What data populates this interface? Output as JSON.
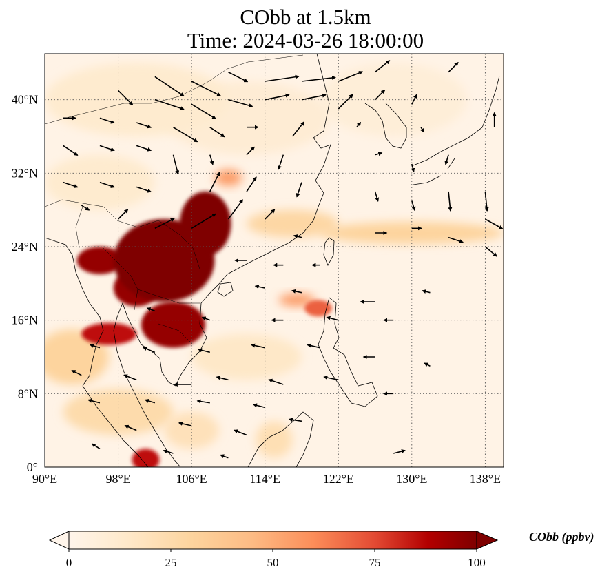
{
  "title": {
    "line1": "CObb at 1.5km",
    "line2": "Time: 2024-03-26 18:00:00"
  },
  "map": {
    "lon_range": [
      90,
      140
    ],
    "lat_range": [
      0,
      45
    ],
    "lon_ticks": [
      {
        "value": 90,
        "label": "90°E"
      },
      {
        "value": 98,
        "label": "98°E"
      },
      {
        "value": 106,
        "label": "106°E"
      },
      {
        "value": 114,
        "label": "114°E"
      },
      {
        "value": 122,
        "label": "122°E"
      },
      {
        "value": 130,
        "label": "130°E"
      },
      {
        "value": 138,
        "label": "138°E"
      }
    ],
    "lat_ticks": [
      {
        "value": 0,
        "label": "0°"
      },
      {
        "value": 8,
        "label": "8°N"
      },
      {
        "value": 16,
        "label": "16°N"
      },
      {
        "value": 24,
        "label": "24°N"
      },
      {
        "value": 32,
        "label": "32°N"
      },
      {
        "value": 40,
        "label": "40°N"
      }
    ],
    "gridlines": true,
    "colors": {
      "low": "#fff5eb",
      "mid": "#fdbf85",
      "high": "#7f0000",
      "coast": "#000000",
      "wind": "#000000"
    },
    "plumes": [
      {
        "lon": 103,
        "lat": 22.5,
        "rx": 5.5,
        "ry": 4.5,
        "level": 100
      },
      {
        "lon": 107.5,
        "lat": 26.5,
        "rx": 2.8,
        "ry": 3.5,
        "level": 100
      },
      {
        "lon": 104,
        "lat": 15.5,
        "rx": 3.5,
        "ry": 2.5,
        "level": 95
      },
      {
        "lon": 96,
        "lat": 22.5,
        "rx": 2.5,
        "ry": 1.5,
        "level": 95
      },
      {
        "lon": 100,
        "lat": 19.5,
        "rx": 2.5,
        "ry": 2,
        "level": 95
      },
      {
        "lon": 97,
        "lat": 14.5,
        "rx": 3,
        "ry": 1.2,
        "level": 85
      },
      {
        "lon": 101,
        "lat": 0.8,
        "rx": 1.5,
        "ry": 1.2,
        "level": 85
      },
      {
        "lon": 119.8,
        "lat": 17.3,
        "rx": 1.5,
        "ry": 0.9,
        "level": 70
      },
      {
        "lon": 117.5,
        "lat": 18.2,
        "rx": 2,
        "ry": 0.7,
        "level": 55
      },
      {
        "lon": 110,
        "lat": 31.5,
        "rx": 1.5,
        "ry": 0.9,
        "level": 55
      },
      {
        "lon": 130,
        "lat": 25.5,
        "rx": 10,
        "ry": 1.2,
        "level": 30
      },
      {
        "lon": 117,
        "lat": 26.5,
        "rx": 5,
        "ry": 1.5,
        "level": 28
      },
      {
        "lon": 93,
        "lat": 12,
        "rx": 4,
        "ry": 3,
        "level": 30
      },
      {
        "lon": 98,
        "lat": 6,
        "rx": 6,
        "ry": 2.5,
        "level": 25
      },
      {
        "lon": 106,
        "lat": 4,
        "rx": 3,
        "ry": 2,
        "level": 20
      },
      {
        "lon": 115,
        "lat": 3,
        "rx": 2,
        "ry": 2,
        "level": 22
      },
      {
        "lon": 112,
        "lat": 12,
        "rx": 6,
        "ry": 2.5,
        "level": 15
      },
      {
        "lon": 100,
        "lat": 40,
        "rx": 10,
        "ry": 4,
        "level": 12
      },
      {
        "lon": 112,
        "lat": 38,
        "rx": 9,
        "ry": 4,
        "level": 10
      },
      {
        "lon": 128,
        "lat": 40,
        "rx": 8,
        "ry": 4,
        "level": 8
      },
      {
        "lon": 96,
        "lat": 31,
        "rx": 6,
        "ry": 3,
        "level": 12
      }
    ],
    "wind_vectors": [
      {
        "lon": 102,
        "lat": 42.5,
        "u": 3,
        "v": -2
      },
      {
        "lon": 106,
        "lat": 42,
        "u": 3,
        "v": -1.5
      },
      {
        "lon": 110,
        "lat": 43,
        "u": 2,
        "v": -1
      },
      {
        "lon": 114,
        "lat": 42,
        "u": 3.5,
        "v": 0.5
      },
      {
        "lon": 118,
        "lat": 42,
        "u": 3.5,
        "v": 0.4
      },
      {
        "lon": 122,
        "lat": 42,
        "u": 2.5,
        "v": 1
      },
      {
        "lon": 126,
        "lat": 43,
        "u": 1.5,
        "v": 1.2
      },
      {
        "lon": 134,
        "lat": 43,
        "u": 1,
        "v": 1
      },
      {
        "lon": 98,
        "lat": 41,
        "u": 1.5,
        "v": -1.5
      },
      {
        "lon": 102,
        "lat": 40,
        "u": 3,
        "v": -1
      },
      {
        "lon": 106,
        "lat": 39.5,
        "u": 2.5,
        "v": -1.5
      },
      {
        "lon": 110,
        "lat": 40,
        "u": 2.5,
        "v": -0.7
      },
      {
        "lon": 114,
        "lat": 40,
        "u": 2.5,
        "v": 0.5
      },
      {
        "lon": 118,
        "lat": 40,
        "u": 2.5,
        "v": 0.5
      },
      {
        "lon": 122,
        "lat": 39,
        "u": 1.5,
        "v": 1.5
      },
      {
        "lon": 126,
        "lat": 40,
        "u": 1,
        "v": 1
      },
      {
        "lon": 130,
        "lat": 39.5,
        "u": 0.5,
        "v": 1
      },
      {
        "lon": 92,
        "lat": 38,
        "u": 1.3,
        "v": 0
      },
      {
        "lon": 96,
        "lat": 38,
        "u": 1.5,
        "v": -0.5
      },
      {
        "lon": 100,
        "lat": 37.5,
        "u": 1.5,
        "v": -0.5
      },
      {
        "lon": 104,
        "lat": 37,
        "u": 2.5,
        "v": -1.5
      },
      {
        "lon": 108,
        "lat": 37,
        "u": 1.5,
        "v": -1
      },
      {
        "lon": 112,
        "lat": 37,
        "u": 1.2,
        "v": 0
      },
      {
        "lon": 117,
        "lat": 36,
        "u": 1.2,
        "v": 1.5
      },
      {
        "lon": 124,
        "lat": 37,
        "u": 0.4,
        "v": 0.5
      },
      {
        "lon": 131,
        "lat": 37,
        "u": 0.3,
        "v": -0.5
      },
      {
        "lon": 139,
        "lat": 37,
        "u": 0,
        "v": 1.5
      },
      {
        "lon": 92,
        "lat": 35,
        "u": 1.5,
        "v": -1
      },
      {
        "lon": 96,
        "lat": 35,
        "u": 1.5,
        "v": -0.5
      },
      {
        "lon": 100,
        "lat": 35,
        "u": 1.5,
        "v": -0.5
      },
      {
        "lon": 104,
        "lat": 34,
        "u": 0.5,
        "v": -2
      },
      {
        "lon": 108,
        "lat": 34,
        "u": 0.3,
        "v": -1
      },
      {
        "lon": 112,
        "lat": 34,
        "u": 0.8,
        "v": 0.8
      },
      {
        "lon": 116,
        "lat": 34,
        "u": -0.5,
        "v": -1.5
      },
      {
        "lon": 126,
        "lat": 34,
        "u": 0.7,
        "v": 0.2
      },
      {
        "lon": 130,
        "lat": 33,
        "u": 0.2,
        "v": -0.8
      },
      {
        "lon": 134,
        "lat": 34,
        "u": -0.3,
        "v": -1
      },
      {
        "lon": 92,
        "lat": 31,
        "u": 1.5,
        "v": -0.5
      },
      {
        "lon": 96,
        "lat": 31,
        "u": 1.5,
        "v": -0.5
      },
      {
        "lon": 100,
        "lat": 30.5,
        "u": 1.5,
        "v": -0.5
      },
      {
        "lon": 108,
        "lat": 30,
        "u": 1,
        "v": 2
      },
      {
        "lon": 112,
        "lat": 30,
        "u": 1,
        "v": 1.5
      },
      {
        "lon": 118,
        "lat": 31,
        "u": -0.5,
        "v": -1.5
      },
      {
        "lon": 126,
        "lat": 30,
        "u": 0.3,
        "v": -1
      },
      {
        "lon": 130,
        "lat": 29,
        "u": 0.3,
        "v": -1
      },
      {
        "lon": 134,
        "lat": 30,
        "u": 0.2,
        "v": -2
      },
      {
        "lon": 138,
        "lat": 30,
        "u": 0.2,
        "v": -2
      },
      {
        "lon": 94,
        "lat": 28.5,
        "u": 0.8,
        "v": -0.5
      },
      {
        "lon": 98,
        "lat": 27,
        "u": 1,
        "v": 1
      },
      {
        "lon": 102,
        "lat": 26,
        "u": 2,
        "v": 1
      },
      {
        "lon": 106,
        "lat": 26,
        "u": 2.5,
        "v": 1.5
      },
      {
        "lon": 110,
        "lat": 27,
        "u": 1.5,
        "v": 2
      },
      {
        "lon": 114,
        "lat": 27,
        "u": 1,
        "v": 1
      },
      {
        "lon": 118,
        "lat": 25,
        "u": -0.8,
        "v": 0.2
      },
      {
        "lon": 126,
        "lat": 25.5,
        "u": 1.2,
        "v": 0
      },
      {
        "lon": 130,
        "lat": 26,
        "u": 1,
        "v": 0
      },
      {
        "lon": 134,
        "lat": 25,
        "u": 1.5,
        "v": -0.5
      },
      {
        "lon": 138,
        "lat": 27,
        "u": 1.8,
        "v": -1
      },
      {
        "lon": 138,
        "lat": 24,
        "u": 1.2,
        "v": -1
      },
      {
        "lon": 112,
        "lat": 22.5,
        "u": -1.2,
        "v": 0
      },
      {
        "lon": 116,
        "lat": 22,
        "u": -1,
        "v": 0
      },
      {
        "lon": 120,
        "lat": 22,
        "u": -0.8,
        "v": 0
      },
      {
        "lon": 114,
        "lat": 19.5,
        "u": -1,
        "v": 0.2
      },
      {
        "lon": 118,
        "lat": 19,
        "u": -1,
        "v": 0.2
      },
      {
        "lon": 126,
        "lat": 18,
        "u": -1.5,
        "v": 0
      },
      {
        "lon": 132,
        "lat": 19,
        "u": -0.8,
        "v": 0.2
      },
      {
        "lon": 102,
        "lat": 17,
        "u": -0.8,
        "v": 0.3
      },
      {
        "lon": 108,
        "lat": 16,
        "u": -0.8,
        "v": 0.3
      },
      {
        "lon": 116,
        "lat": 16,
        "u": -1.2,
        "v": 0
      },
      {
        "lon": 122,
        "lat": 16,
        "u": -1.2,
        "v": 0.3
      },
      {
        "lon": 128,
        "lat": 16,
        "u": -1,
        "v": 0
      },
      {
        "lon": 96,
        "lat": 13,
        "u": -1,
        "v": 0.3
      },
      {
        "lon": 102,
        "lat": 12.5,
        "u": -1.2,
        "v": 0.5
      },
      {
        "lon": 108,
        "lat": 12.5,
        "u": -1.2,
        "v": 0.3
      },
      {
        "lon": 114,
        "lat": 13,
        "u": -1.4,
        "v": 0.3
      },
      {
        "lon": 120,
        "lat": 13,
        "u": -1.3,
        "v": 0.3
      },
      {
        "lon": 126,
        "lat": 12,
        "u": -1.2,
        "v": 0
      },
      {
        "lon": 132,
        "lat": 11,
        "u": -0.6,
        "v": 0.3
      },
      {
        "lon": 94,
        "lat": 10,
        "u": -1,
        "v": 0.5
      },
      {
        "lon": 100,
        "lat": 9.5,
        "u": -1.3,
        "v": 0.5
      },
      {
        "lon": 106,
        "lat": 9,
        "u": -1.8,
        "v": 0
      },
      {
        "lon": 110,
        "lat": 9.5,
        "u": -1.2,
        "v": 0.3
      },
      {
        "lon": 116,
        "lat": 9,
        "u": -1.5,
        "v": 0.5
      },
      {
        "lon": 122,
        "lat": 9.5,
        "u": -1.5,
        "v": 0.3
      },
      {
        "lon": 128,
        "lat": 8,
        "u": -1,
        "v": 0
      },
      {
        "lon": 96,
        "lat": 7,
        "u": -1.2,
        "v": 0.3
      },
      {
        "lon": 102,
        "lat": 7,
        "u": -1,
        "v": 0.3
      },
      {
        "lon": 108,
        "lat": 7,
        "u": -1.3,
        "v": 0.2
      },
      {
        "lon": 114,
        "lat": 6.5,
        "u": -1.2,
        "v": 0.3
      },
      {
        "lon": 118,
        "lat": 5,
        "u": -1.3,
        "v": 0.2
      },
      {
        "lon": 100,
        "lat": 4,
        "u": -1.2,
        "v": 0.5
      },
      {
        "lon": 106,
        "lat": 4.5,
        "u": -1.3,
        "v": 0.3
      },
      {
        "lon": 112,
        "lat": 3.5,
        "u": -1.3,
        "v": 0.5
      },
      {
        "lon": 96,
        "lat": 2,
        "u": -0.8,
        "v": 0.5
      },
      {
        "lon": 104,
        "lat": 1.5,
        "u": -1,
        "v": 0.3
      },
      {
        "lon": 110,
        "lat": 1,
        "u": -0.8,
        "v": 0.3
      },
      {
        "lon": 128,
        "lat": 1.5,
        "u": 1.2,
        "v": 0.3
      }
    ]
  },
  "colorbar": {
    "label": "CObb (ppbv)",
    "min": 0,
    "max": 100,
    "ticks": [
      "0",
      "25",
      "50",
      "75",
      "100"
    ],
    "extend": "both",
    "colormap": "OrRd"
  }
}
